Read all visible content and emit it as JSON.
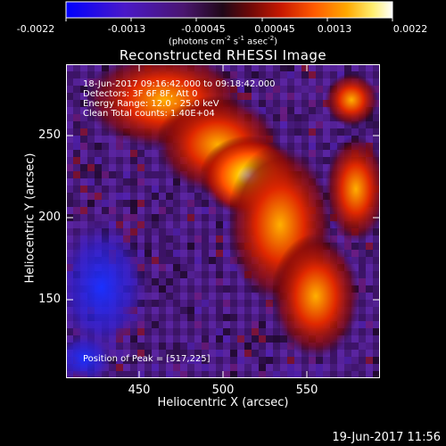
{
  "colorbar": {
    "tick_labels": [
      "-0.0022",
      "-0.0013",
      "-0.00045",
      "0.00045",
      "0.0013",
      "0.0022"
    ],
    "unit_text": "(photons cm",
    "unit_exp1": "-2",
    "unit_mid1": " s",
    "unit_exp2": "-1",
    "unit_mid2": " asec",
    "unit_exp3": "-2",
    "unit_end": ")",
    "colors": [
      "#0000ff",
      "#5a1fd0",
      "#4b1a7a",
      "#2a0a30",
      "#8a0a0a",
      "#d02000",
      "#ff6000",
      "#ffb000",
      "#ffff80",
      "#ffffff"
    ]
  },
  "title": "Reconstructed RHESSI Image",
  "info": {
    "line1": "18-Jun-2017 09:16:42.000 to 09:18:42.000",
    "line2": "Detectors: 3F 6F 8F, Att 0",
    "line3": "Energy Range: 12.0 - 25.0 keV",
    "line4": "Clean     Total counts: 1.40E+04",
    "peak": "Position of Peak = [517,225]"
  },
  "axes": {
    "xlabel": "Heliocentric X (arcsec)",
    "ylabel": "Heliocentric Y (arcsec)",
    "xticks": [
      "450",
      "500",
      "550"
    ],
    "yticks": [
      "250",
      "200",
      "150"
    ]
  },
  "footer": "19-Jun-2017 11:56"
}
